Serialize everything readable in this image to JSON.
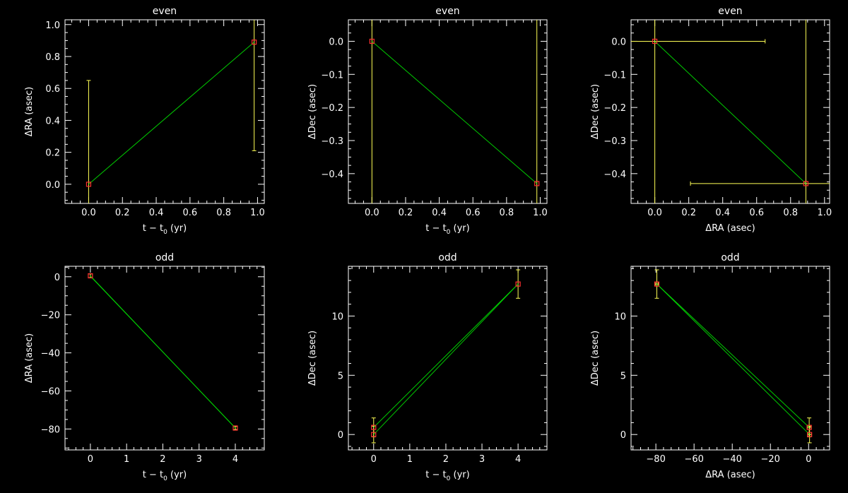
{
  "colors": {
    "background": "#000000",
    "axes": "#ffffff",
    "line": "#00cc00",
    "errorbar": "#ffff55",
    "marker": "#ff3030"
  },
  "chart_data": [
    {
      "type": "scatter",
      "title": "even",
      "xlabel": "t − t0 (yr)",
      "ylabel": "ΔRA (asec)",
      "xlim": [
        -0.14,
        1.04
      ],
      "ylim": [
        -0.12,
        1.03
      ],
      "xticks": [
        0.0,
        0.2,
        0.4,
        0.6,
        0.8,
        1.0
      ],
      "yticks": [
        0.0,
        0.2,
        0.4,
        0.6,
        0.8,
        1.0
      ],
      "xtick_labels": [
        "0.0",
        "0.2",
        "0.4",
        "0.6",
        "0.8",
        "1.0"
      ],
      "ytick_labels": [
        "0.0",
        "0.2",
        "0.4",
        "0.6",
        "0.8",
        "1.0"
      ],
      "x": [
        0.0,
        0.98
      ],
      "y": [
        0.0,
        0.89
      ],
      "yerr": [
        0.65,
        0.68
      ],
      "xerr": [
        0,
        0
      ],
      "fit_lines": [
        [
          [
            0.0,
            0.0
          ],
          [
            0.98,
            0.89
          ]
        ]
      ]
    },
    {
      "type": "scatter",
      "title": "even",
      "xlabel": "t − t0 (yr)",
      "ylabel": "ΔDec (asec)",
      "xlim": [
        -0.14,
        1.04
      ],
      "ylim": [
        -0.49,
        0.065
      ],
      "xticks": [
        0.0,
        0.2,
        0.4,
        0.6,
        0.8,
        1.0
      ],
      "yticks": [
        0.0,
        -0.1,
        -0.2,
        -0.3,
        -0.4
      ],
      "xtick_labels": [
        "0.0",
        "0.2",
        "0.4",
        "0.6",
        "0.8",
        "1.0"
      ],
      "ytick_labels": [
        "0.0",
        "−0.1",
        "−0.2",
        "−0.3",
        "−0.4"
      ],
      "x": [
        0.0,
        0.98
      ],
      "y": [
        0.0,
        -0.43
      ],
      "yerr": [
        1.0,
        1.0
      ],
      "xerr": [
        0,
        0
      ],
      "fit_lines": [
        [
          [
            0.0,
            0.0
          ],
          [
            0.98,
            -0.43
          ]
        ]
      ]
    },
    {
      "type": "scatter",
      "title": "even",
      "xlabel": "ΔRA (asec)",
      "ylabel": "ΔDec (asec)",
      "xlim": [
        -0.14,
        1.03
      ],
      "ylim": [
        -0.49,
        0.065
      ],
      "xticks": [
        0.0,
        0.2,
        0.4,
        0.6,
        0.8,
        1.0
      ],
      "yticks": [
        0.0,
        -0.1,
        -0.2,
        -0.3,
        -0.4
      ],
      "xtick_labels": [
        "0.0",
        "0.2",
        "0.4",
        "0.6",
        "0.8",
        "1.0"
      ],
      "ytick_labels": [
        "0.0",
        "−0.1",
        "−0.2",
        "−0.3",
        "−0.4"
      ],
      "x": [
        0.0,
        0.89
      ],
      "y": [
        0.0,
        -0.43
      ],
      "yerr": [
        1.0,
        1.0
      ],
      "xerr": [
        0.65,
        0.68
      ],
      "fit_lines": [
        [
          [
            0.0,
            0.0
          ],
          [
            0.89,
            -0.43
          ]
        ]
      ]
    },
    {
      "type": "scatter",
      "title": "odd",
      "xlabel": "t − t0 (yr)",
      "ylabel": "ΔRA (asec)",
      "xlim": [
        -0.7,
        4.8
      ],
      "ylim": [
        -91,
        5.5
      ],
      "xticks": [
        0,
        1,
        2,
        3,
        4
      ],
      "yticks": [
        0,
        -20,
        -40,
        -60,
        -80
      ],
      "xtick_labels": [
        "0",
        "1",
        "2",
        "3",
        "4"
      ],
      "ytick_labels": [
        "0",
        "−20",
        "−40",
        "−60",
        "−80"
      ],
      "x": [
        0.0,
        4.0
      ],
      "y": [
        0.5,
        -79.5
      ],
      "yerr": [
        1.0,
        0.8
      ],
      "xerr": [
        0,
        0
      ],
      "fit_lines": [
        [
          [
            0.0,
            0.5
          ],
          [
            4.0,
            -79.5
          ]
        ],
        [
          [
            0.0,
            0.3
          ],
          [
            4.0,
            -79.4
          ]
        ]
      ]
    },
    {
      "type": "scatter",
      "title": "odd",
      "xlabel": "t − t0 (yr)",
      "ylabel": "ΔDec (asec)",
      "xlim": [
        -0.7,
        4.8
      ],
      "ylim": [
        -1.3,
        14.2
      ],
      "xticks": [
        0,
        1,
        2,
        3,
        4
      ],
      "yticks": [
        0,
        5,
        10
      ],
      "xtick_labels": [
        "0",
        "1",
        "2",
        "3",
        "4"
      ],
      "ytick_labels": [
        "0",
        "5",
        "10"
      ],
      "x": [
        0.0,
        0.0,
        4.0
      ],
      "y": [
        0.0,
        0.6,
        12.7
      ],
      "yerr": [
        0.7,
        0.8,
        1.2
      ],
      "xerr": [
        0,
        0,
        0
      ],
      "fit_lines": [
        [
          [
            0.0,
            0.0
          ],
          [
            4.0,
            12.7
          ]
        ],
        [
          [
            0.0,
            0.6
          ],
          [
            4.0,
            12.7
          ]
        ]
      ]
    },
    {
      "type": "scatter",
      "title": "odd",
      "xlabel": "ΔRA (asec)",
      "ylabel": "ΔDec (asec)",
      "xlim": [
        -93,
        11
      ],
      "ylim": [
        -1.3,
        14.2
      ],
      "xticks": [
        -80,
        -60,
        -40,
        -20,
        0
      ],
      "yticks": [
        0,
        5,
        10
      ],
      "xtick_labels": [
        "−80",
        "−60",
        "−40",
        "−20",
        "0"
      ],
      "ytick_labels": [
        "0",
        "5",
        "10"
      ],
      "x": [
        -79.5,
        0.5,
        0.3
      ],
      "y": [
        12.7,
        0.0,
        0.6
      ],
      "yerr": [
        1.2,
        0.7,
        0.8
      ],
      "xerr": [
        0.8,
        1.0,
        1.0
      ],
      "fit_lines": [
        [
          [
            -79.5,
            12.7
          ],
          [
            0.5,
            0.0
          ]
        ],
        [
          [
            -79.5,
            12.7
          ],
          [
            0.3,
            0.6
          ]
        ]
      ]
    }
  ]
}
